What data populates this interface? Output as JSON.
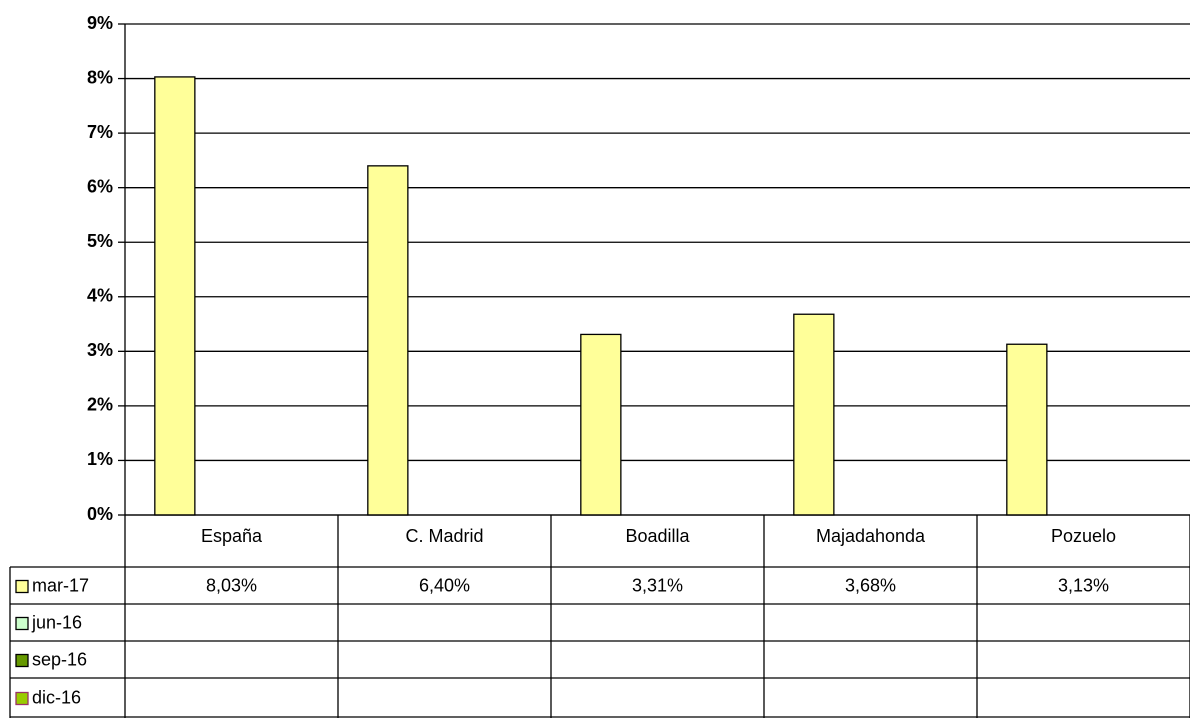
{
  "chart_data": {
    "type": "bar",
    "categories": [
      "España",
      "C. Madrid",
      "Boadilla",
      "Majadahonda",
      "Pozuelo"
    ],
    "series": [
      {
        "name": "mar-17",
        "color": "#ffff99",
        "values": [
          8.03,
          6.4,
          3.31,
          3.68,
          3.13
        ],
        "value_labels": [
          "8,03%",
          "6,40%",
          "3,31%",
          "3,68%",
          "3,13%"
        ]
      },
      {
        "name": "jun-16",
        "color": "#ccffcc",
        "values": [
          null,
          null,
          null,
          null,
          null
        ]
      },
      {
        "name": "sep-16",
        "color": "#669900",
        "values": [
          null,
          null,
          null,
          null,
          null
        ]
      },
      {
        "name": "dic-16",
        "color": "#99cc00",
        "values": [
          null,
          null,
          null,
          null,
          null
        ]
      }
    ],
    "ylim": [
      0,
      9
    ],
    "yticks": [
      {
        "value": 0,
        "label": "0%"
      },
      {
        "value": 1,
        "label": "1%"
      },
      {
        "value": 2,
        "label": "2%"
      },
      {
        "value": 3,
        "label": "3%"
      },
      {
        "value": 4,
        "label": "4%"
      },
      {
        "value": 5,
        "label": "5%"
      },
      {
        "value": 6,
        "label": "6%"
      },
      {
        "value": 7,
        "label": "7%"
      },
      {
        "value": 8,
        "label": "8%"
      },
      {
        "value": 9,
        "label": "9%"
      }
    ],
    "grid": true,
    "data_table": true
  }
}
